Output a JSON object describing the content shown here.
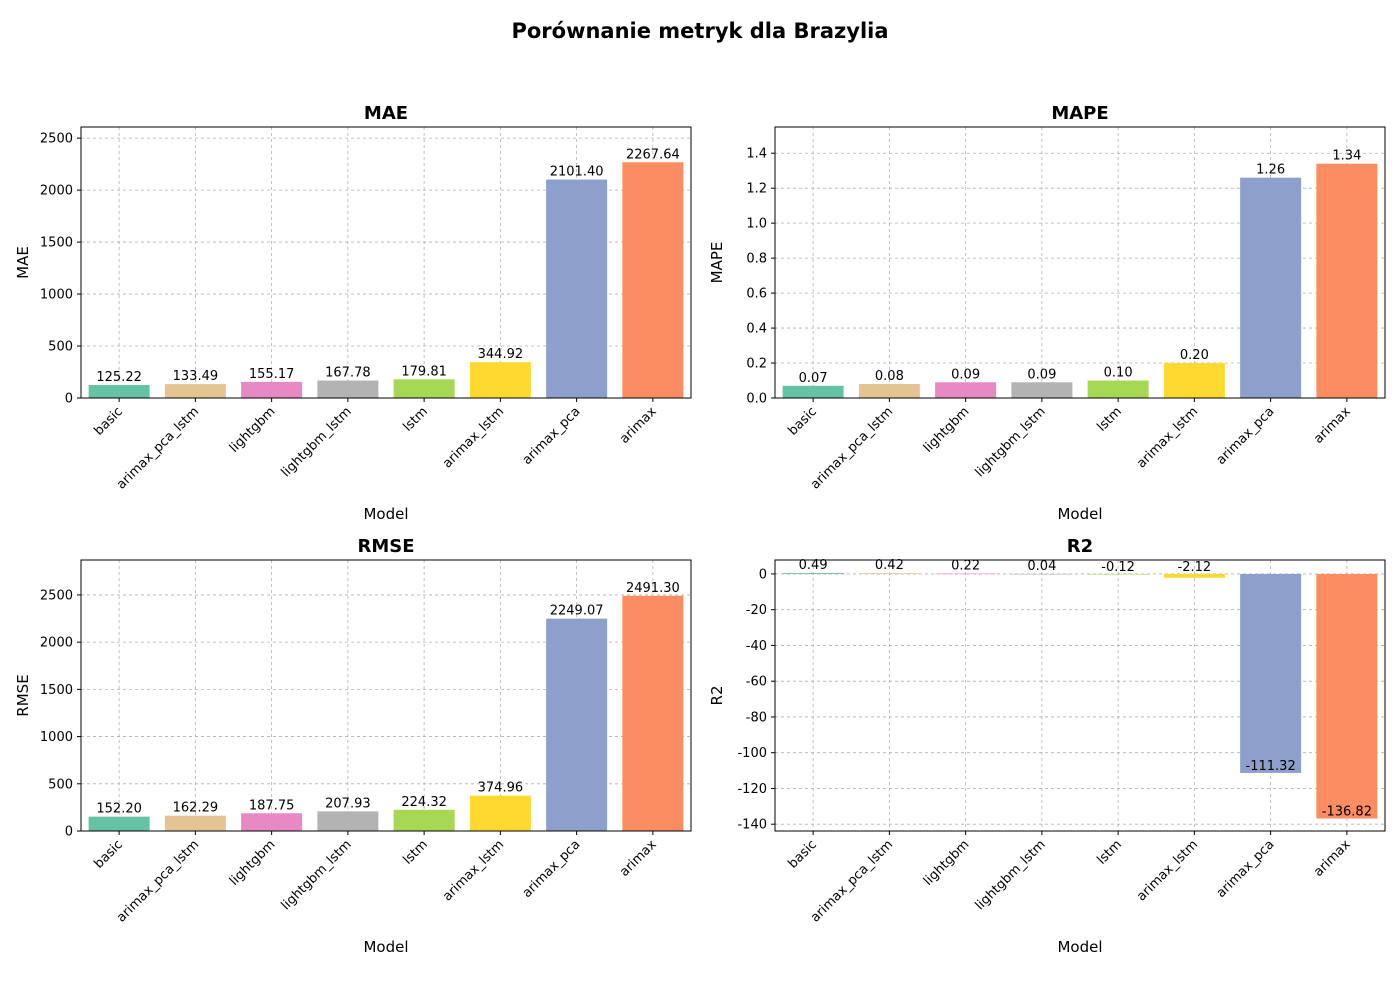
{
  "figure": {
    "title": "Porównanie metryk dla Brazylia"
  },
  "palette": [
    "#66c2a5",
    "#e5c494",
    "#e78ac3",
    "#b3b3b3",
    "#a6d854",
    "#ffd92f",
    "#8da0cb",
    "#fc8d62"
  ],
  "chart_data": [
    {
      "type": "bar",
      "title": "MAE",
      "xlabel": "Model",
      "ylabel": "MAE",
      "categories": [
        "basic",
        "arimax_pca_lstm",
        "lightgbm",
        "lightgbm_lstm",
        "lstm",
        "arimax_lstm",
        "arimax_pca",
        "arimax"
      ],
      "values": [
        125.22,
        133.49,
        155.17,
        167.78,
        179.81,
        344.92,
        2101.4,
        2267.64
      ],
      "labels": [
        "125.22",
        "133.49",
        "155.17",
        "167.78",
        "179.81",
        "344.92",
        "2101.40",
        "2267.64"
      ],
      "ylim": [
        0,
        2607
      ],
      "yticks": [
        0,
        500,
        1000,
        1500,
        2000,
        2500
      ],
      "grid": true
    },
    {
      "type": "bar",
      "title": "MAPE",
      "xlabel": "Model",
      "ylabel": "MAPE",
      "categories": [
        "basic",
        "arimax_pca_lstm",
        "lightgbm",
        "lightgbm_lstm",
        "lstm",
        "arimax_lstm",
        "arimax_pca",
        "arimax"
      ],
      "values": [
        0.07,
        0.08,
        0.09,
        0.09,
        0.1,
        0.2,
        1.26,
        1.34
      ],
      "labels": [
        "0.07",
        "0.08",
        "0.09",
        "0.09",
        "0.10",
        "0.20",
        "1.26",
        "1.34"
      ],
      "ylim": [
        0,
        1.55
      ],
      "yticks": [
        0.0,
        0.2,
        0.4,
        0.6,
        0.8,
        1.0,
        1.2,
        1.4
      ],
      "yticklabels": [
        "0.0",
        "0.2",
        "0.4",
        "0.6",
        "0.8",
        "1.0",
        "1.2",
        "1.4"
      ],
      "grid": true
    },
    {
      "type": "bar",
      "title": "RMSE",
      "xlabel": "Model",
      "ylabel": "RMSE",
      "categories": [
        "basic",
        "arimax_pca_lstm",
        "lightgbm",
        "lightgbm_lstm",
        "lstm",
        "arimax_lstm",
        "arimax_pca",
        "arimax"
      ],
      "values": [
        152.2,
        162.29,
        187.75,
        207.93,
        224.32,
        374.96,
        2249.07,
        2491.3
      ],
      "labels": [
        "152.20",
        "162.29",
        "187.75",
        "207.93",
        "224.32",
        "374.96",
        "2249.07",
        "2491.30"
      ],
      "ylim": [
        0,
        2870
      ],
      "yticks": [
        0,
        500,
        1000,
        1500,
        2000,
        2500
      ],
      "grid": true
    },
    {
      "type": "bar",
      "title": "R2",
      "xlabel": "Model",
      "ylabel": "R2",
      "categories": [
        "basic",
        "arimax_pca_lstm",
        "lightgbm",
        "lightgbm_lstm",
        "lstm",
        "arimax_lstm",
        "arimax_pca",
        "arimax"
      ],
      "values": [
        0.49,
        0.42,
        0.22,
        0.04,
        -0.12,
        -2.12,
        -111.32,
        -136.82
      ],
      "labels": [
        "0.49",
        "0.42",
        "0.22",
        "0.04",
        "-0.12",
        "-2.12",
        "-111.32",
        "-136.82"
      ],
      "ylim": [
        -143.8,
        7.8
      ],
      "yticks": [
        0,
        -20,
        -40,
        -60,
        -80,
        -100,
        -120,
        -140
      ],
      "grid": true
    }
  ]
}
